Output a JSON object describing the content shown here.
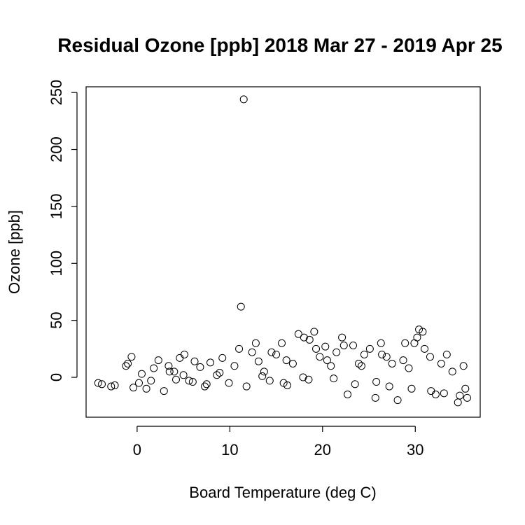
{
  "chart_data": {
    "type": "scatter",
    "title": "Residual Ozone [ppb] 2018 Mar 27 - 2019 Apr 25",
    "xlabel": "Board Temperature (deg C)",
    "ylabel": "Ozone [ppb]",
    "xlim": [
      -5.5,
      37
    ],
    "ylim": [
      -35,
      255
    ],
    "xticks": [
      0,
      10,
      20,
      30
    ],
    "yticks": [
      0,
      50,
      100,
      150,
      200,
      250
    ],
    "grid": false,
    "marker": "open-circle",
    "colors": {
      "points": "#000000",
      "background": "#ffffff"
    },
    "clusters_note_series": [],
    "x": [
      11.5,
      11.2,
      -4.2,
      -3.8,
      -2.8,
      -2.4,
      -1.2,
      -1.0,
      -0.6,
      -0.4,
      0.2,
      0.5,
      1.0,
      1.8,
      2.3,
      2.9,
      3.4,
      4.0,
      4.6,
      5.1,
      5.6,
      6.2,
      6.8,
      7.3,
      7.9,
      8.6,
      9.2,
      9.9,
      10.5,
      11.0,
      11.8,
      12.4,
      13.1,
      13.7,
      14.3,
      15.0,
      15.6,
      16.2,
      16.8,
      17.4,
      18.0,
      18.5,
      19.1,
      19.7,
      20.3,
      20.9,
      21.5,
      22.1,
      22.7,
      23.3,
      23.9,
      24.5,
      25.1,
      25.7,
      26.3,
      26.9,
      27.5,
      28.1,
      28.7,
      29.3,
      29.9,
      30.4,
      31.0,
      31.6,
      32.2,
      32.8,
      33.4,
      34.0,
      34.6,
      35.2,
      35.6,
      18.6,
      19.3,
      12.8,
      14.5,
      16.1,
      22.3,
      30.2,
      30.8,
      28.9,
      24.2,
      26.4,
      20.5,
      3.5,
      5.0,
      6.0,
      7.5,
      4.2,
      1.5,
      8.9,
      13.5,
      15.8,
      17.9,
      21.2,
      23.5,
      25.8,
      27.2,
      29.6,
      31.7,
      33.1,
      34.8,
      35.4
    ],
    "y": [
      244,
      62,
      -5,
      -6,
      -8,
      -7,
      10,
      12,
      18,
      -9,
      -5,
      3,
      -10,
      8,
      15,
      -12,
      10,
      5,
      17,
      20,
      -3,
      14,
      9,
      -8,
      13,
      2,
      17,
      -5,
      10,
      25,
      -8,
      22,
      14,
      5,
      -3,
      20,
      30,
      -7,
      12,
      38,
      35,
      -2,
      40,
      18,
      27,
      10,
      22,
      35,
      -15,
      28,
      12,
      20,
      25,
      -18,
      30,
      18,
      12,
      -20,
      15,
      8,
      30,
      42,
      25,
      18,
      -15,
      12,
      20,
      5,
      -22,
      10,
      -18,
      33,
      25,
      30,
      22,
      15,
      28,
      35,
      40,
      30,
      10,
      20,
      15,
      5,
      2,
      -4,
      -6,
      -2,
      -3,
      4,
      1,
      -5,
      0,
      -1,
      -6,
      -4,
      -8,
      -10,
      -12,
      -14,
      -16,
      -10
    ]
  }
}
